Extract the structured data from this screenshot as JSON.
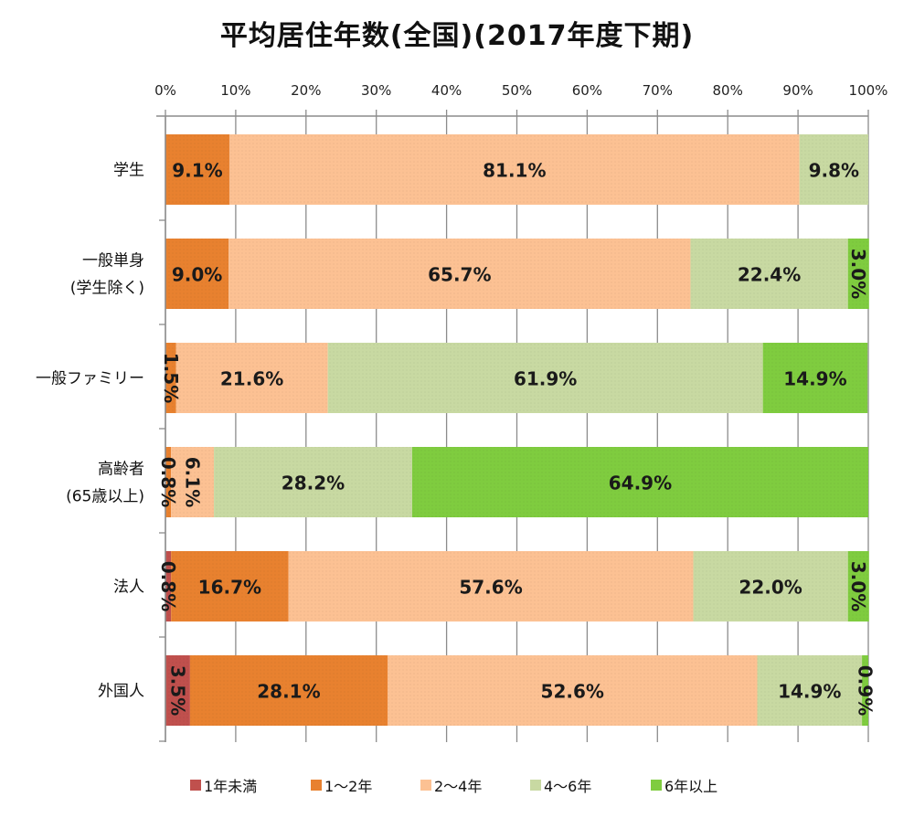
{
  "chart_data": {
    "type": "bar",
    "orientation": "horizontal",
    "stacked": "percent",
    "title": "平均居住年数(全国)(2017年度下期)",
    "xlabel": "",
    "ylabel": "",
    "xlim": [
      0,
      100
    ],
    "x_ticks": [
      "0%",
      "10%",
      "20%",
      "30%",
      "40%",
      "50%",
      "60%",
      "70%",
      "80%",
      "90%",
      "100%"
    ],
    "grid": true,
    "legend_position": "bottom",
    "categories": [
      [
        "学生"
      ],
      [
        "一般単身",
        "(学生除く)"
      ],
      [
        "一般ファミリー"
      ],
      [
        "高齢者",
        "(65歳以上)"
      ],
      [
        "法人"
      ],
      [
        "外国人"
      ]
    ],
    "series": [
      {
        "name": "1年未満",
        "color": "#c0504d",
        "values": [
          0,
          0,
          0,
          0,
          0.8,
          3.5
        ]
      },
      {
        "name": "1〜2年",
        "color": "#e8812f",
        "values": [
          9.1,
          9.0,
          1.5,
          0.8,
          16.7,
          28.1
        ]
      },
      {
        "name": "2〜4年",
        "color": "#fcc193",
        "values": [
          81.1,
          65.7,
          21.6,
          6.1,
          57.6,
          52.6
        ]
      },
      {
        "name": "4〜6年",
        "color": "#c8d9a2",
        "values": [
          9.8,
          22.4,
          61.9,
          28.2,
          22.0,
          14.9
        ]
      },
      {
        "name": "6年以上",
        "color": "#7fcc3f",
        "values": [
          0,
          3.0,
          14.9,
          64.9,
          3.0,
          0.9
        ]
      }
    ],
    "label_suffix": "%"
  }
}
